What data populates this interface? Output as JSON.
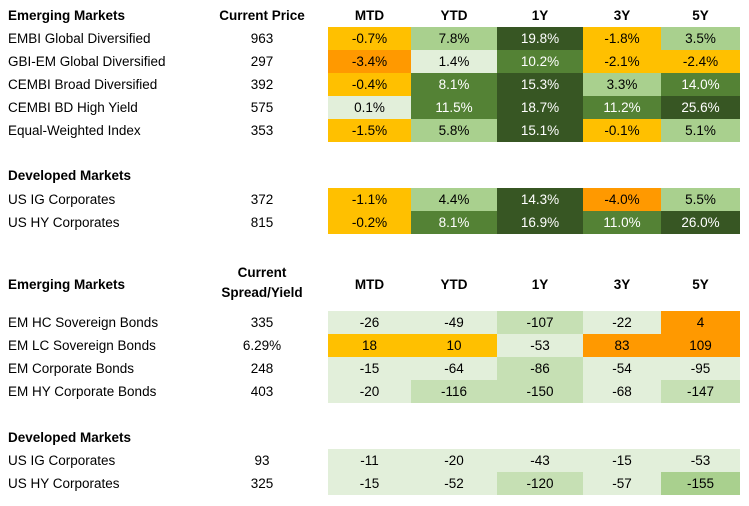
{
  "palette": {
    "dark_green": "#375623",
    "mid_green": "#548235",
    "light_green": "#a9d08e",
    "pale_green": "#e2efda",
    "amber": "#ffc000",
    "orange": "#ff9900",
    "white": "#ffffff"
  },
  "returns_table": {
    "columns": [
      "MTD",
      "YTD",
      "1Y",
      "3Y",
      "5Y"
    ],
    "sections": [
      {
        "title": "Emerging Markets",
        "price_header": "Current Price",
        "rows": [
          {
            "name": "EMBI Global Diversified",
            "price": "963",
            "values": [
              "-0.7%",
              "7.8%",
              "19.8%",
              "-1.8%",
              "3.5%"
            ],
            "colors": [
              "#ffc000",
              "#a9d08e",
              "#375623",
              "#ffc000",
              "#a9d08e"
            ]
          },
          {
            "name": "GBI-EM Global Diversified",
            "price": "297",
            "values": [
              "-3.4%",
              "1.4%",
              "10.2%",
              "-2.1%",
              "-2.4%"
            ],
            "colors": [
              "#ff9900",
              "#e2efda",
              "#548235",
              "#ffc000",
              "#ffc000"
            ]
          },
          {
            "name": "CEMBI Broad Diversified",
            "price": "392",
            "values": [
              "-0.4%",
              "8.1%",
              "15.3%",
              "3.3%",
              "14.0%"
            ],
            "colors": [
              "#ffc000",
              "#548235",
              "#375623",
              "#a9d08e",
              "#548235"
            ]
          },
          {
            "name": "CEMBI BD High Yield",
            "price": "575",
            "values": [
              "0.1%",
              "11.5%",
              "18.7%",
              "11.2%",
              "25.6%"
            ],
            "colors": [
              "#e2efda",
              "#548235",
              "#375623",
              "#548235",
              "#375623"
            ]
          },
          {
            "name": "Equal-Weighted Index",
            "price": "353",
            "values": [
              "-1.5%",
              "5.8%",
              "15.1%",
              "-0.1%",
              "5.1%"
            ],
            "colors": [
              "#ffc000",
              "#a9d08e",
              "#375623",
              "#ffc000",
              "#a9d08e"
            ]
          }
        ]
      },
      {
        "title": "Developed Markets",
        "price_header": "",
        "rows": [
          {
            "name": "US IG Corporates",
            "price": "372",
            "values": [
              "-1.1%",
              "4.4%",
              "14.3%",
              "-4.0%",
              "5.5%"
            ],
            "colors": [
              "#ffc000",
              "#a9d08e",
              "#375623",
              "#ff9900",
              "#a9d08e"
            ]
          },
          {
            "name": "US HY Corporates",
            "price": "815",
            "values": [
              "-0.2%",
              "8.1%",
              "16.9%",
              "11.0%",
              "26.0%"
            ],
            "colors": [
              "#ffc000",
              "#548235",
              "#375623",
              "#548235",
              "#375623"
            ]
          }
        ]
      }
    ]
  },
  "spread_table": {
    "columns": [
      "MTD",
      "YTD",
      "1Y",
      "3Y",
      "5Y"
    ],
    "sections": [
      {
        "title": "Emerging Markets",
        "price_header": "Current Spread/Yield",
        "rows": [
          {
            "name": "EM HC Sovereign Bonds",
            "price": "335",
            "values": [
              "-26",
              "-49",
              "-107",
              "-22",
              "4"
            ],
            "colors": [
              "#e2efda",
              "#e2efda",
              "#c6e0b4",
              "#e2efda",
              "#ff9900"
            ]
          },
          {
            "name": "EM LC Sovereign Bonds",
            "price": "6.29%",
            "values": [
              "18",
              "10",
              "-53",
              "83",
              "109"
            ],
            "colors": [
              "#ffc000",
              "#ffc000",
              "#e2efda",
              "#ff9900",
              "#ff9900"
            ]
          },
          {
            "name": "EM Corporate Bonds",
            "price": "248",
            "values": [
              "-15",
              "-64",
              "-86",
              "-54",
              "-95"
            ],
            "colors": [
              "#e2efda",
              "#e2efda",
              "#c6e0b4",
              "#e2efda",
              "#e2efda"
            ]
          },
          {
            "name": "EM HY Corporate Bonds",
            "price": "403",
            "values": [
              "-20",
              "-116",
              "-150",
              "-68",
              "-147"
            ],
            "colors": [
              "#e2efda",
              "#c6e0b4",
              "#c6e0b4",
              "#e2efda",
              "#c6e0b4"
            ]
          }
        ]
      },
      {
        "title": "Developed Markets",
        "price_header": "",
        "rows": [
          {
            "name": "US IG Corporates",
            "price": "93",
            "values": [
              "-11",
              "-20",
              "-43",
              "-15",
              "-53"
            ],
            "colors": [
              "#e2efda",
              "#e2efda",
              "#e2efda",
              "#e2efda",
              "#e2efda"
            ]
          },
          {
            "name": "US HY Corporates",
            "price": "325",
            "values": [
              "-15",
              "-52",
              "-120",
              "-57",
              "-155"
            ],
            "colors": [
              "#e2efda",
              "#e2efda",
              "#c6e0b4",
              "#e2efda",
              "#a9d08e"
            ]
          }
        ]
      }
    ]
  }
}
